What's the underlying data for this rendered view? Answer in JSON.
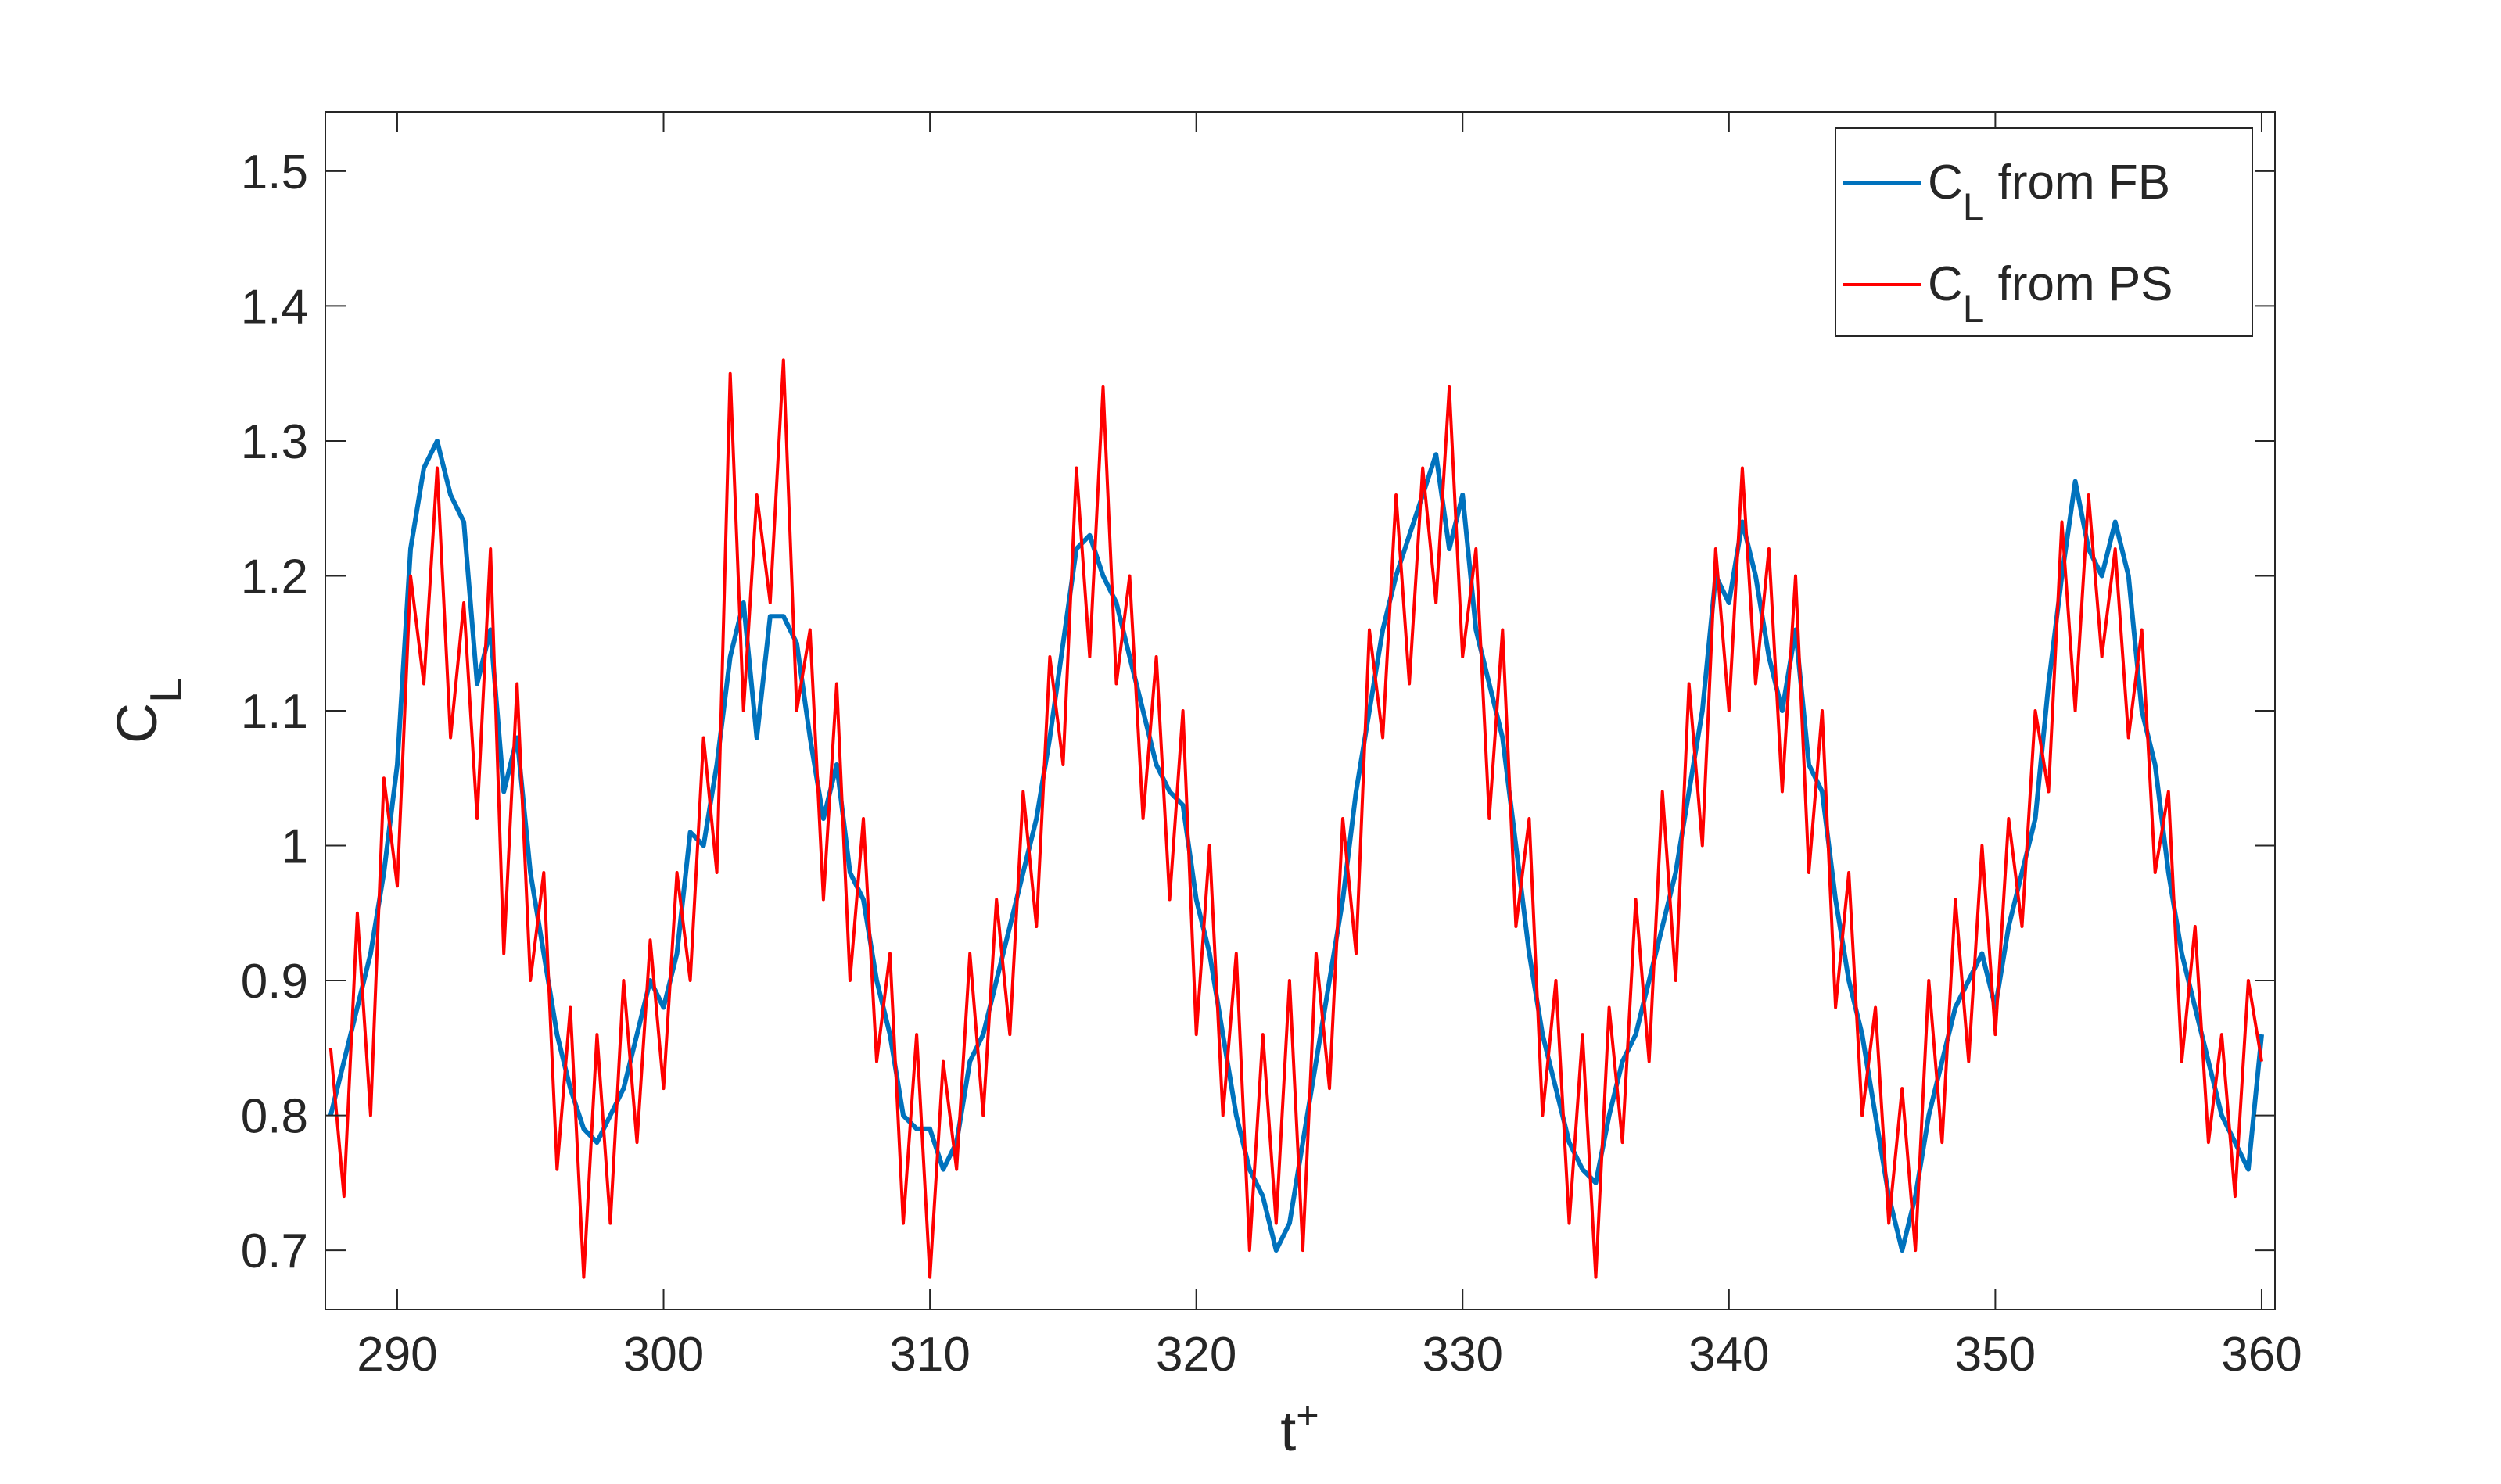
{
  "chart_data": {
    "type": "line",
    "xlabel": "t^+",
    "ylabel": "C_L",
    "xlim": [
      287.3,
      360.5
    ],
    "ylim": [
      0.656,
      1.544
    ],
    "xticks": [
      290,
      300,
      310,
      320,
      330,
      340,
      350,
      360
    ],
    "yticks": [
      0.7,
      0.8,
      0.9,
      1,
      1.1,
      1.2,
      1.3,
      1.4,
      1.5
    ],
    "legend": "upper right",
    "x": [
      287.5,
      288,
      288.5,
      289,
      289.5,
      290,
      290.5,
      291,
      291.5,
      292,
      292.5,
      293,
      293.5,
      294,
      294.5,
      295,
      295.5,
      296,
      296.5,
      297,
      297.5,
      298,
      298.5,
      299,
      299.5,
      300,
      300.5,
      301,
      301.5,
      302,
      302.5,
      303,
      303.5,
      304,
      304.5,
      305,
      305.5,
      306,
      306.5,
      307,
      307.5,
      308,
      308.5,
      309,
      309.5,
      310,
      310.5,
      311,
      311.5,
      312,
      312.5,
      313,
      313.5,
      314,
      314.5,
      315,
      315.5,
      316,
      316.5,
      317,
      317.5,
      318,
      318.5,
      319,
      319.5,
      320,
      320.5,
      321,
      321.5,
      322,
      322.5,
      323,
      323.5,
      324,
      324.5,
      325,
      325.5,
      326,
      326.5,
      327,
      327.5,
      328,
      328.5,
      329,
      329.5,
      330,
      330.5,
      331,
      331.5,
      332,
      332.5,
      333,
      333.5,
      334,
      334.5,
      335,
      335.5,
      336,
      336.5,
      337,
      337.5,
      338,
      338.5,
      339,
      339.5,
      340,
      340.5,
      341,
      341.5,
      342,
      342.5,
      343,
      343.5,
      344,
      344.5,
      345,
      345.5,
      346,
      346.5,
      347,
      347.5,
      348,
      348.5,
      349,
      349.5,
      350,
      350.5,
      351,
      351.5,
      352,
      352.5,
      353,
      353.5,
      354,
      354.5,
      355,
      355.5,
      356,
      356.5,
      357,
      357.5,
      358,
      358.5,
      359,
      359.5,
      360
    ],
    "series": [
      {
        "name": "C_L from FB",
        "color": "#0072bd",
        "width": 6,
        "values": [
          0.8,
          0.84,
          0.88,
          0.92,
          0.98,
          1.06,
          1.22,
          1.28,
          1.3,
          1.26,
          1.24,
          1.12,
          1.16,
          1.04,
          1.08,
          0.98,
          0.92,
          0.86,
          0.82,
          0.79,
          0.78,
          0.8,
          0.82,
          0.86,
          0.9,
          0.88,
          0.92,
          1.01,
          1.0,
          1.06,
          1.14,
          1.18,
          1.08,
          1.17,
          1.17,
          1.15,
          1.08,
          1.02,
          1.06,
          0.98,
          0.96,
          0.9,
          0.86,
          0.8,
          0.79,
          0.79,
          0.76,
          0.78,
          0.84,
          0.86,
          0.9,
          0.94,
          0.98,
          1.02,
          1.08,
          1.15,
          1.22,
          1.23,
          1.2,
          1.18,
          1.14,
          1.1,
          1.06,
          1.04,
          1.03,
          0.96,
          0.92,
          0.86,
          0.8,
          0.76,
          0.74,
          0.7,
          0.72,
          0.78,
          0.84,
          0.9,
          0.96,
          1.04,
          1.1,
          1.16,
          1.2,
          1.23,
          1.26,
          1.29,
          1.22,
          1.26,
          1.16,
          1.12,
          1.08,
          1.0,
          0.92,
          0.86,
          0.82,
          0.78,
          0.76,
          0.75,
          0.8,
          0.84,
          0.86,
          0.9,
          0.94,
          0.98,
          1.04,
          1.1,
          1.2,
          1.18,
          1.24,
          1.2,
          1.14,
          1.1,
          1.16,
          1.06,
          1.04,
          0.96,
          0.9,
          0.86,
          0.8,
          0.74,
          0.7,
          0.74,
          0.8,
          0.84,
          0.88,
          0.9,
          0.92,
          0.88,
          0.94,
          0.98,
          1.02,
          1.12,
          1.2,
          1.27,
          1.22,
          1.2,
          1.24,
          1.2,
          1.1,
          1.06,
          0.98,
          0.92,
          0.88,
          0.84,
          0.8,
          0.78,
          0.76,
          0.86
        ]
      },
      {
        "name": "C_L from PS",
        "color": "#ff0000",
        "width": 4,
        "values": [
          0.85,
          0.74,
          0.95,
          0.8,
          1.05,
          0.97,
          1.2,
          1.12,
          1.28,
          1.08,
          1.18,
          1.02,
          1.22,
          0.92,
          1.12,
          0.9,
          0.98,
          0.76,
          0.88,
          0.68,
          0.86,
          0.72,
          0.9,
          0.78,
          0.93,
          0.82,
          0.98,
          0.9,
          1.08,
          0.98,
          1.35,
          1.1,
          1.26,
          1.18,
          1.36,
          1.1,
          1.16,
          0.96,
          1.12,
          0.9,
          1.02,
          0.84,
          0.92,
          0.72,
          0.86,
          0.68,
          0.84,
          0.76,
          0.92,
          0.8,
          0.96,
          0.86,
          1.04,
          0.94,
          1.14,
          1.06,
          1.28,
          1.14,
          1.34,
          1.12,
          1.2,
          1.02,
          1.14,
          0.96,
          1.1,
          0.86,
          1.0,
          0.8,
          0.92,
          0.7,
          0.86,
          0.72,
          0.9,
          0.7,
          0.92,
          0.82,
          1.02,
          0.92,
          1.16,
          1.08,
          1.26,
          1.12,
          1.28,
          1.18,
          1.34,
          1.14,
          1.22,
          1.02,
          1.16,
          0.94,
          1.02,
          0.8,
          0.9,
          0.72,
          0.86,
          0.68,
          0.88,
          0.78,
          0.96,
          0.84,
          1.04,
          0.9,
          1.12,
          1.0,
          1.22,
          1.1,
          1.28,
          1.12,
          1.22,
          1.04,
          1.2,
          0.98,
          1.1,
          0.88,
          0.98,
          0.8,
          0.88,
          0.72,
          0.82,
          0.7,
          0.9,
          0.78,
          0.96,
          0.84,
          1.0,
          0.86,
          1.02,
          0.94,
          1.1,
          1.04,
          1.24,
          1.1,
          1.26,
          1.14,
          1.22,
          1.08,
          1.16,
          0.98,
          1.04,
          0.84,
          0.94,
          0.78,
          0.86,
          0.74,
          0.9,
          0.84
        ]
      }
    ]
  }
}
